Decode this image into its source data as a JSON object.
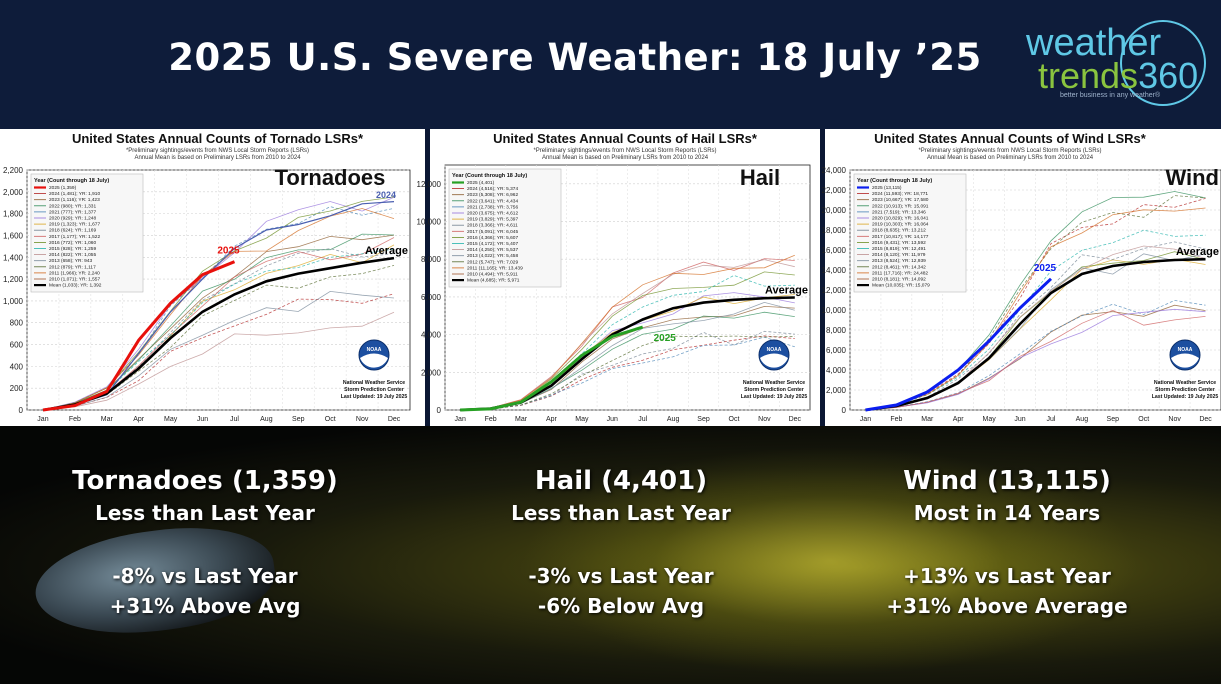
{
  "header": {
    "title": "2025 U.S. Severe Weather: 18 July ’25",
    "logo": {
      "line1": "weather",
      "line2a": "trends",
      "line2b": "360",
      "tagline": "better business in any weather®"
    }
  },
  "months": [
    "Jan",
    "Feb",
    "Mar",
    "Apr",
    "May",
    "Jun",
    "Jul",
    "Aug",
    "Sep",
    "Oct",
    "Nov",
    "Dec"
  ],
  "legend_heading": "Year (Count through 18 July)",
  "footnote_line1": "*Preliminary sightings/events from NWS Local Storm Reports (LSRs)",
  "footnote_line2": "Annual Mean is based on Preliminary LSRs from 2010 to 2024",
  "credit": {
    "line1": "National Weather Service",
    "line2": "Storm Prediction Center",
    "line3": "Last Updated: 19 July 2025"
  },
  "noaa_label": "NOAA",
  "chart_data": [
    {
      "type": "line",
      "title": "United States Annual Counts of Tornado LSRs*",
      "label": "Tornadoes",
      "ylim": [
        0,
        2200
      ],
      "yticks": [
        0,
        200,
        400,
        600,
        800,
        1000,
        1200,
        1400,
        1600,
        1800,
        2000,
        2200
      ],
      "tick_labels": [
        "0",
        "200",
        "400",
        "600",
        "800",
        "1,000",
        "1,200",
        "1,400",
        "1,600",
        "1,800",
        "2,000",
        "2,200"
      ],
      "accent": "#e8100c",
      "legend": [
        "2025 (1,359)",
        "2024 (1,481); YR: 1,910",
        "2023 (1,116); YR: 1,423",
        "2022 (980); YR: 1,331",
        "2021 (777); YR: 1,377",
        "2020 (929); YR: 1,248",
        "2019 (1,323); YR: 1,677",
        "2018 (624); YR: 1,169",
        "2017 (1,177); YR: 1,522",
        "2016 (772); YR: 1,060",
        "2015 (928); YR: 1,259",
        "2014 (822); YR: 1,055",
        "2013 (658); YR: 943",
        "2012 (879); YR: 1,117",
        "2011 (1,966); YR: 2,240",
        "2010 (1,071); YR: 1,557",
        "Mean (1,033); YR: 1,392"
      ],
      "current_label": "2025",
      "current_values": [
        0,
        40,
        170,
        640,
        980,
        1240,
        1359
      ],
      "average_label": "Average",
      "average_values": [
        0,
        50,
        150,
        380,
        660,
        900,
        1060,
        1180,
        1250,
        1300,
        1350,
        1392
      ],
      "other_label": "2024",
      "other_values": [
        0,
        45,
        140,
        520,
        900,
        1200,
        1481,
        1650,
        1700,
        1780,
        1890,
        1910
      ]
    },
    {
      "type": "line",
      "title": "United States Annual Counts of Hail LSRs*",
      "label": "Hail",
      "ylim": [
        0,
        13000
      ],
      "yticks": [
        0,
        2000,
        4000,
        6000,
        8000,
        10000,
        12000
      ],
      "tick_labels": [
        "0",
        "2,000",
        "4,000",
        "6,000",
        "8,000",
        "10,000",
        "12,000"
      ],
      "accent": "#27a024",
      "legend": [
        "2025 (4,401)",
        "2024 (4,516); YR: 5,374",
        "2023 (5,308); YR: 6,962",
        "2022 (3,641); YR: 4,434",
        "2021 (2,738); YR: 3,756",
        "2020 (3,675); YR: 4,612",
        "2019 (3,829); YR: 5,397",
        "2018 (3,366); YR: 4,611",
        "2017 (5,091); YR: 6,045",
        "2016 (4,366); YR: 5,607",
        "2015 (4,172); YR: 5,407",
        "2014 (4,250); YR: 5,537",
        "2013 (4,022); YR: 5,458",
        "2012 (5,747); YR: 7,029",
        "2011 (11,165); YR: 13,439",
        "2010 (4,494); YR: 5,911",
        "Mean (4,685); YR: 5,971"
      ],
      "current_label": "2025",
      "current_values": [
        0,
        60,
        420,
        1500,
        2900,
        3900,
        4401
      ],
      "average_label": "Average",
      "average_values": [
        0,
        80,
        400,
        1300,
        2700,
        4000,
        4800,
        5400,
        5700,
        5850,
        5930,
        5971
      ],
      "other_label": "",
      "other_values": []
    },
    {
      "type": "line",
      "title": "United States Annual Counts of Wind LSRs*",
      "label": "Wind",
      "ylim": [
        0,
        24000
      ],
      "yticks": [
        0,
        2000,
        4000,
        6000,
        8000,
        10000,
        12000,
        14000,
        16000,
        18000,
        20000,
        22000,
        24000
      ],
      "tick_labels": [
        "0",
        "2,000",
        "4,000",
        "6,000",
        "8,000",
        "10,000",
        "12,000",
        "14,000",
        "16,000",
        "18,000",
        "20,000",
        "22,000",
        "24,000"
      ],
      "accent": "#0b1ef0",
      "legend": [
        "2025 (13,115)",
        "2024 (11,593); YR: 18,771",
        "2023 (10,667); YR: 17,580",
        "2022 (10,913); YR: 15,091",
        "2021 (7,519); YR: 13,346",
        "2020 (10,829); YR: 16,041",
        "2019 (10,303); YR: 16,064",
        "2018 (8,635); YR: 13,212",
        "2017 (10,817); YR: 14,177",
        "2016 (9,431); YR: 13,592",
        "2015 (8,819); YR: 12,491",
        "2014 (8,120); YR: 11,979",
        "2013 (8,524); YR: 12,939",
        "2012 (8,461); YR: 14,342",
        "2011 (17,716); YR: 24,482",
        "2010 (8,181); YR: 14,092",
        "Mean (10,035); YR: 15,079"
      ],
      "current_label": "2025",
      "current_values": [
        0,
        500,
        1800,
        4000,
        6900,
        10200,
        13115
      ],
      "average_label": "Average",
      "average_values": [
        0,
        400,
        1200,
        2700,
        5200,
        8600,
        11700,
        13600,
        14400,
        14800,
        15000,
        15079
      ],
      "other_label": "",
      "other_values": []
    }
  ],
  "summary": [
    {
      "headline": "Tornadoes (1,359)",
      "sub": "Less than Last Year",
      "line1": "-8% vs Last Year",
      "line2": "+31% Above Avg"
    },
    {
      "headline": "Hail (4,401)",
      "sub": "Less than Last Year",
      "line1": "-3% vs Last Year",
      "line2": "-6% Below Avg"
    },
    {
      "headline": "Wind (13,115)",
      "sub": "Most in 14 Years",
      "line1": "+13% vs Last Year",
      "line2": "+31% Above Average"
    }
  ]
}
